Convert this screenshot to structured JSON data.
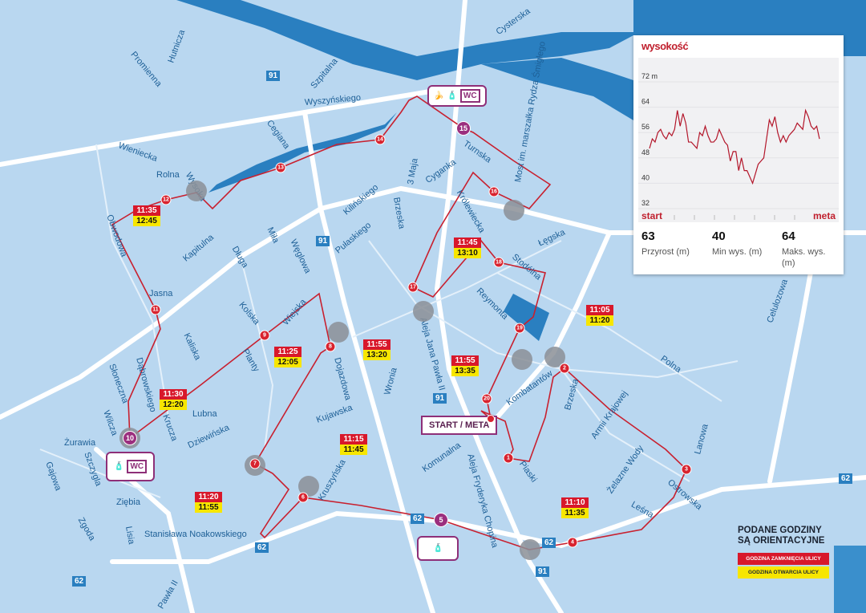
{
  "elevation": {
    "title": "wysokość",
    "y_ticks": [
      "72 m",
      "64",
      "56",
      "48",
      "40",
      "32"
    ],
    "y_range": [
      32,
      72
    ],
    "start_label": "start",
    "end_label": "meta",
    "profile": [
      51,
      54,
      53,
      56,
      57,
      55,
      54,
      56,
      55,
      57,
      63,
      58,
      62,
      59,
      53,
      53,
      52,
      51,
      56,
      55,
      58,
      55,
      53,
      53,
      54,
      57,
      55,
      53,
      52,
      47,
      50,
      50,
      44,
      48,
      44,
      44,
      42,
      40,
      43,
      46,
      47,
      48,
      54,
      60,
      58,
      61,
      56,
      53,
      55,
      53,
      55,
      56,
      57,
      59,
      58,
      57,
      63,
      61,
      58,
      57,
      58,
      54
    ],
    "stats": [
      {
        "value": "63",
        "label": "Przyrost (m)"
      },
      {
        "value": "40",
        "label": "Min wys. (m)"
      },
      {
        "value": "64",
        "label": "Maks. wys. (m)"
      }
    ],
    "line_color": "#b3162a"
  },
  "legend": {
    "heading_1": "PODANE GODZINY",
    "heading_2": "SĄ ORIENTACYJNE",
    "closing": "GODZINA ZAMKNIĘCIA ULICY",
    "opening": "GODZINA OTWARCIA ULICY",
    "closing_color": "#d8182b",
    "opening_color": "#f7e600"
  },
  "start_meta": "START / META",
  "stations": [
    {
      "items": [
        "banana-icon",
        "bottle-icon",
        "WC"
      ]
    },
    {
      "items": [
        "bottle-icon",
        "WC"
      ]
    },
    {
      "items": [
        "bottle-icon"
      ]
    }
  ],
  "km_markers": [
    "1",
    "2",
    "3",
    "4",
    "5",
    "6",
    "7",
    "8",
    "9",
    "10",
    "11",
    "12",
    "13",
    "14",
    "15",
    "16",
    "17",
    "18",
    "19",
    "20"
  ],
  "times": [
    {
      "close": "11:35",
      "open": "12:45"
    },
    {
      "close": "11:45",
      "open": "13:10"
    },
    {
      "close": "11:05",
      "open": "11:20"
    },
    {
      "close": "11:25",
      "open": "12:05"
    },
    {
      "close": "11:55",
      "open": "13:20"
    },
    {
      "close": "11:55",
      "open": "13:35"
    },
    {
      "close": "11:30",
      "open": "12:20"
    },
    {
      "close": "11:15",
      "open": "11:45"
    },
    {
      "close": "11:20",
      "open": "11:55"
    },
    {
      "close": "11:10",
      "open": "11:35"
    }
  ],
  "road_numbers": [
    "91",
    "91",
    "91",
    "91",
    "62",
    "62",
    "62",
    "62",
    "62"
  ],
  "streets": [
    "Promienna",
    "Hutnicza",
    "Wieniecka",
    "Wyszyńskiego",
    "Cegiana",
    "Szpitalna",
    "Rolna",
    "Wysoka",
    "Obwodowa",
    "Kapitulna",
    "Długa",
    "Miła",
    "Węglowa",
    "Kilińskiego",
    "Pułaskiego",
    "Brzeska",
    "Cyganka",
    "3 Maja",
    "Królewiecka",
    "Turnska",
    "Łęgska",
    "Stodólna",
    "Reymonta",
    "Celulozowa",
    "Jasna",
    "Kolska",
    "Wiejska",
    "Dojazdowa",
    "Planty",
    "Kaliska",
    "Lubna",
    "Dziewińska",
    "Kujawska",
    "Wronia",
    "Dąbrowskiego",
    "Słoneczna",
    "Wilcza",
    "Kruczа",
    "Szczygla",
    "Żurawia",
    "Gajowa",
    "Zgoda",
    "Ziębia",
    "Lisia",
    "Stanisława Noakowskiego",
    "Kruszyńska",
    "Pawła II",
    "Aleja Jana Pawła II",
    "Aleja Fryderyka Chopina",
    "Komunalna",
    "Kombatantów",
    "Brzeska",
    "Piaski",
    "Armii Krajowej",
    "Żelazne Wody",
    "Ostrowska",
    "Leśna",
    "Lanowa",
    "Polna",
    "Cysterska",
    "Most im. marszałka Rydza Śmigłego"
  ]
}
